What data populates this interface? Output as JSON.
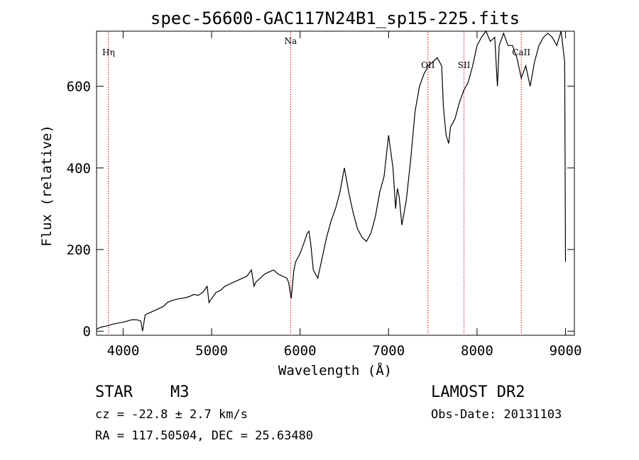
{
  "chart_data": {
    "type": "line",
    "title": "spec-56600-GAC117N24B1_sp15-225.fits",
    "xlabel": "Wavelength (Å)",
    "ylabel": "Flux (relative)",
    "xlim": [
      3700,
      9100
    ],
    "ylim": [
      -10,
      735
    ],
    "x_ticks": [
      4000,
      5000,
      6000,
      7000,
      8000,
      9000
    ],
    "y_ticks": [
      0,
      200,
      400,
      600
    ],
    "grid": false,
    "line_color": "#000000",
    "marker_color": "#cc0000",
    "series": [
      {
        "x": [
          3700,
          3750,
          3800,
          3850,
          3900,
          3950,
          4000,
          4050,
          4100,
          4150,
          4200,
          4220,
          4250,
          4300,
          4350,
          4400,
          4450,
          4500,
          4550,
          4600,
          4650,
          4700,
          4750,
          4800,
          4850,
          4900,
          4950,
          4970,
          5000,
          5050,
          5100,
          5150,
          5200,
          5250,
          5300,
          5350,
          5400,
          5450,
          5480,
          5500,
          5550,
          5600,
          5650,
          5700,
          5750,
          5800,
          5850,
          5870,
          5900,
          5930,
          5950,
          6000,
          6050,
          6080,
          6100,
          6120,
          6150,
          6200,
          6250,
          6300,
          6350,
          6400,
          6450,
          6500,
          6550,
          6600,
          6650,
          6700,
          6750,
          6800,
          6850,
          6900,
          6950,
          7000,
          7050,
          7080,
          7100,
          7120,
          7150,
          7200,
          7250,
          7300,
          7350,
          7400,
          7450,
          7500,
          7550,
          7600,
          7620,
          7650,
          7680,
          7700,
          7750,
          7800,
          7850,
          7900,
          7950,
          8000,
          8050,
          8100,
          8150,
          8200,
          8230,
          8250,
          8300,
          8350,
          8400,
          8450,
          8500,
          8550,
          8600,
          8650,
          8700,
          8750,
          8800,
          8850,
          8900,
          8950,
          8990,
          9000
        ],
        "y": [
          5,
          10,
          12,
          15,
          18,
          20,
          22,
          25,
          28,
          28,
          25,
          0,
          40,
          45,
          50,
          55,
          60,
          70,
          75,
          78,
          80,
          82,
          85,
          90,
          88,
          95,
          110,
          70,
          80,
          95,
          100,
          110,
          115,
          120,
          125,
          130,
          135,
          150,
          110,
          120,
          130,
          140,
          145,
          150,
          140,
          135,
          130,
          120,
          80,
          150,
          170,
          190,
          220,
          240,
          245,
          215,
          150,
          130,
          180,
          230,
          270,
          300,
          340,
          400,
          340,
          290,
          250,
          230,
          220,
          240,
          280,
          340,
          380,
          480,
          400,
          300,
          350,
          330,
          260,
          320,
          420,
          540,
          600,
          630,
          650,
          660,
          670,
          650,
          550,
          480,
          460,
          500,
          520,
          560,
          590,
          610,
          650,
          700,
          720,
          740,
          710,
          720,
          600,
          700,
          730,
          700,
          700,
          670,
          620,
          650,
          600,
          660,
          700,
          720,
          730,
          720,
          700,
          740,
          660,
          170
        ]
      }
    ],
    "spectral_lines": [
      {
        "label": "Hη",
        "x": 3835
      },
      {
        "label": "Na",
        "x": 5893
      },
      {
        "label": "OII",
        "x": 7445
      },
      {
        "label": "SII",
        "x": 7852
      },
      {
        "label": "CaII",
        "x": 8500
      }
    ]
  },
  "info": {
    "class_label": "STAR",
    "subclass": "M3",
    "cz": "cz = -22.8 ± 2.7 km/s",
    "radec": "RA = 117.50504, DEC =  25.63480",
    "survey": "LAMOST DR2",
    "obs_date": "Obs-Date: 20131103"
  }
}
